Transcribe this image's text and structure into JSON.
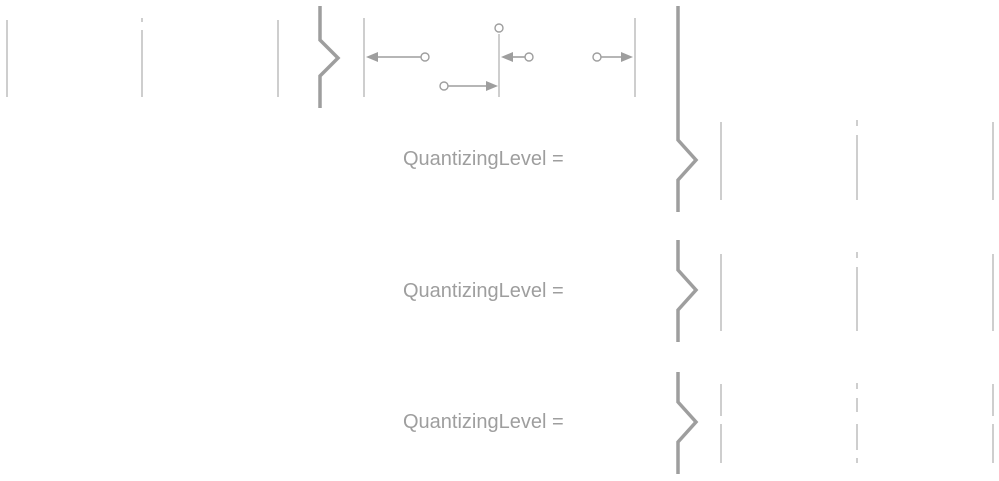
{
  "diagram": {
    "rows": [
      {
        "label": "QuantizingLevel ="
      },
      {
        "label": "QuantizingLevel ="
      },
      {
        "label": "QuantizingLevel ="
      }
    ]
  }
}
